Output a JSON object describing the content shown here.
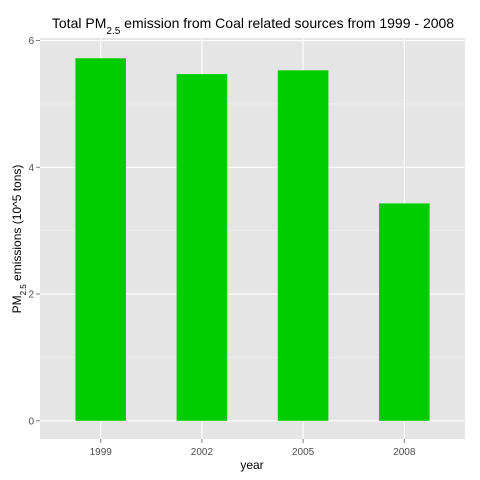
{
  "chart_data": {
    "type": "bar",
    "title": {
      "prefix": "Total PM",
      "subscript": "2.5",
      "suffix": " emission from Coal related sources from 1999 - 2008"
    },
    "xlabel": "year",
    "ylabel": {
      "prefix": "PM",
      "subscript": "2.5",
      "suffix": " emissions (10^5 tons)"
    },
    "categories": [
      "1999",
      "2002",
      "2005",
      "2008"
    ],
    "values": [
      5.72,
      5.47,
      5.53,
      3.43
    ],
    "yticks": [
      0,
      2,
      4,
      6
    ],
    "ylim": [
      -0.2874,
      6.04
    ],
    "grid": true,
    "bar_color": "#00cc00",
    "panel_background": "#e5e5e5",
    "grid_color": "#ffffff"
  }
}
